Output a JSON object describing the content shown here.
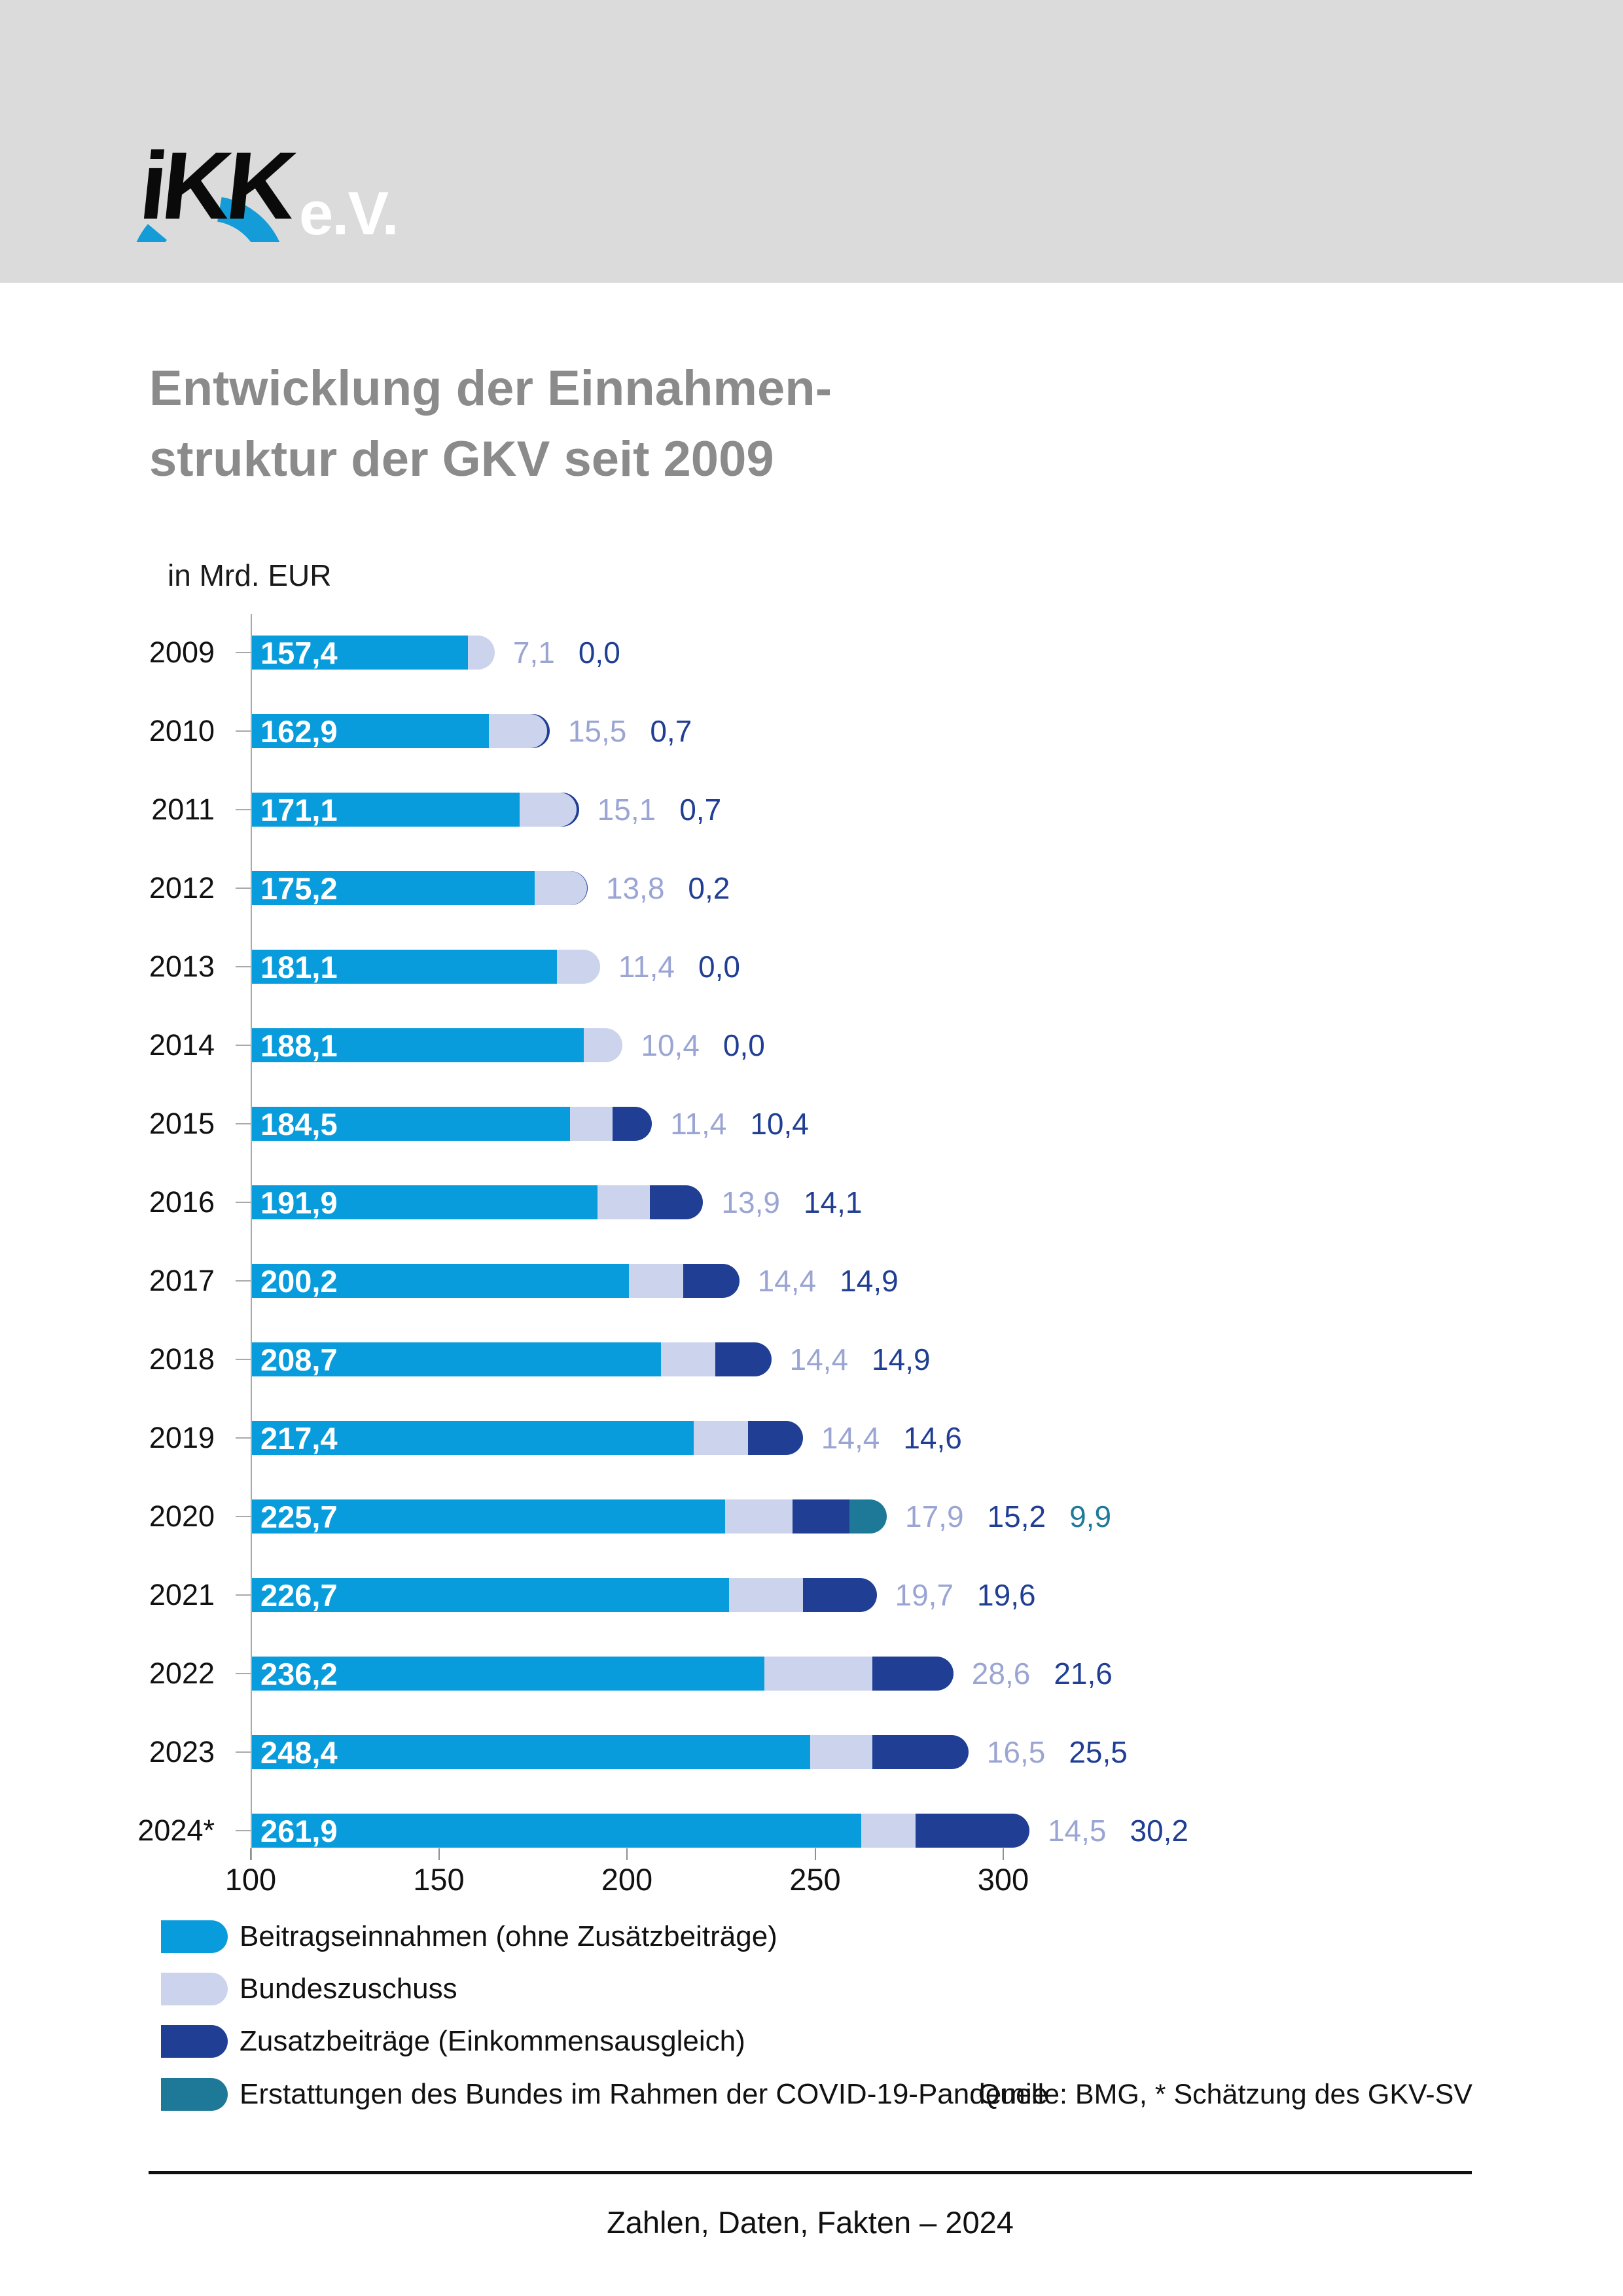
{
  "logo": {
    "brand": "iKK",
    "suffix": "e.V."
  },
  "title": {
    "line1": "Entwicklung der Einnahmen-",
    "line2": "struktur der GKV seit 2009"
  },
  "unit_label": "in Mrd. EUR",
  "chart_data": {
    "type": "bar",
    "orientation": "horizontal",
    "stacked": true,
    "title": "Entwicklung der Einnahmenstruktur der GKV seit 2009",
    "unit": "Mrd. EUR",
    "x_axis": {
      "min": 100,
      "max": 300,
      "ticks": [
        100,
        150,
        200,
        250,
        300
      ],
      "tick_labels": [
        "100",
        "150",
        "200",
        "250",
        "300"
      ]
    },
    "grid": false,
    "legend_position": "bottom-left",
    "categories": [
      "2009",
      "2010",
      "2011",
      "2012",
      "2013",
      "2014",
      "2015",
      "2016",
      "2017",
      "2018",
      "2019",
      "2020",
      "2021",
      "2022",
      "2023",
      "2024*"
    ],
    "series": [
      {
        "key": "beitragseinnahmen",
        "name": "Beitragseinnahmen (ohne Zusätzbeiträge)",
        "color": "#089CDC",
        "label_color": "#FFFFFF",
        "values": [
          157.4,
          162.9,
          171.1,
          175.2,
          181.1,
          188.1,
          184.5,
          191.9,
          200.2,
          208.7,
          217.4,
          225.7,
          226.7,
          236.2,
          248.4,
          261.9
        ],
        "labels": [
          "157,4",
          "162,9",
          "171,1",
          "175,2",
          "181,1",
          "188,1",
          "184,5",
          "191,9",
          "200,2",
          "208,7",
          "217,4",
          "225,7",
          "226,7",
          "236,2",
          "248,4",
          "261,9"
        ]
      },
      {
        "key": "bundeszuschuss",
        "name": "Bundeszuschuss",
        "color": "#CBD3ED",
        "label_color": "#9BA5D3",
        "values": [
          7.1,
          15.5,
          15.1,
          13.8,
          11.4,
          10.4,
          11.4,
          13.9,
          14.4,
          14.4,
          14.4,
          17.9,
          19.7,
          28.6,
          16.5,
          14.5
        ],
        "labels": [
          "7,1",
          "15,5",
          "15,1",
          "13,8",
          "11,4",
          "10,4",
          "11,4",
          "13,9",
          "14,4",
          "14,4",
          "14,4",
          "17,9",
          "19,7",
          "28,6",
          "16,5",
          "14,5"
        ]
      },
      {
        "key": "zusatzbeitraege",
        "name": "Zusatzbeiträge (Einkommensausgleich)",
        "color": "#1F3E94",
        "label_color": "#203E93",
        "values": [
          0.0,
          0.7,
          0.7,
          0.2,
          0.0,
          0.0,
          10.4,
          14.1,
          14.9,
          14.9,
          14.6,
          15.2,
          19.6,
          21.6,
          25.5,
          30.2
        ],
        "labels": [
          "0,0",
          "0,7",
          "0,7",
          "0,2",
          "0,0",
          "0,0",
          "10,4",
          "14,1",
          "14,9",
          "14,9",
          "14,6",
          "15,2",
          "19,6",
          "21,6",
          "25,5",
          "30,2"
        ]
      },
      {
        "key": "covid-erstattungen",
        "name": "Erstattungen des Bundes im Rahmen der COVID-19-Pandemie",
        "color": "#1E7998",
        "label_color": "#1F7A9A",
        "values": [
          0,
          0,
          0,
          0,
          0,
          0,
          0,
          0,
          0,
          0,
          0,
          9.9,
          0,
          0,
          0,
          0
        ],
        "labels": [
          "",
          "",
          "",
          "",
          "",
          "",
          "",
          "",
          "",
          "",
          "",
          "9,9",
          "",
          "",
          "",
          ""
        ]
      }
    ]
  },
  "legend": {
    "items": [
      {
        "label": "Beitragseinnahmen (ohne Zusätzbeiträge)",
        "color": "#089CDC"
      },
      {
        "label": "Bundeszuschuss",
        "color": "#CBD3ED"
      },
      {
        "label": "Zusatzbeiträge (Einkommensausgleich)",
        "color": "#1F3E94"
      },
      {
        "label": "Erstattungen des Bundes im Rahmen der COVID-19-Pandemie",
        "color": "#1E7998"
      }
    ]
  },
  "source": "Quelle: BMG, * Schätzung des GKV-SV",
  "footer": "Zahlen, Daten, Fakten – 2024"
}
